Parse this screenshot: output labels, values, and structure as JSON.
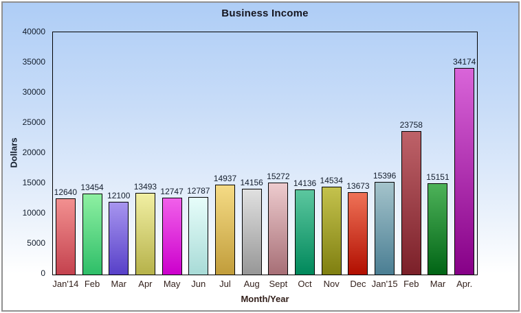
{
  "window": {
    "frame_border_color": "#8f8f8f",
    "background_top_color": "#aecdf6",
    "background_bottom_color": "#ffffff"
  },
  "chart_data": {
    "type": "bar",
    "title": "Business Income",
    "xlabel": "Month/Year",
    "ylabel": "Dollars",
    "ylim": [
      0,
      40000
    ],
    "yticks": [
      0,
      5000,
      10000,
      15000,
      20000,
      25000,
      30000,
      35000,
      40000
    ],
    "grid": false,
    "legend": "none",
    "value_labels_shown": true,
    "categories": [
      "Jan'14",
      "Feb",
      "Mar",
      "Apr",
      "May",
      "Jun",
      "Jul",
      "Aug",
      "Sept",
      "Oct",
      "Nov",
      "Dec",
      "Jan'15",
      "Feb",
      "Mar",
      "Apr."
    ],
    "values": [
      12640,
      13454,
      12100,
      13493,
      12747,
      12787,
      14937,
      14156,
      15272,
      14136,
      14534,
      13673,
      15396,
      23758,
      15151,
      34174
    ],
    "bar_colors": [
      {
        "top": "#f29090",
        "bottom": "#c4424e"
      },
      {
        "top": "#8ef0a2",
        "bottom": "#2ebe68"
      },
      {
        "top": "#a795ef",
        "bottom": "#5740c8"
      },
      {
        "top": "#f1efa3",
        "bottom": "#b6b24a"
      },
      {
        "top": "#f160ea",
        "bottom": "#cc00cc"
      },
      {
        "top": "#e7fdfa",
        "bottom": "#a8dbd7"
      },
      {
        "top": "#f5db85",
        "bottom": "#c19d3b"
      },
      {
        "top": "#e0e0e0",
        "bottom": "#979797"
      },
      {
        "top": "#edcbce",
        "bottom": "#a76f76"
      },
      {
        "top": "#5cc79f",
        "bottom": "#00885b"
      },
      {
        "top": "#c4c24d",
        "bottom": "#7f7f10"
      },
      {
        "top": "#ef7257",
        "bottom": "#b10e00"
      },
      {
        "top": "#a4c3cb",
        "bottom": "#4a7e93"
      },
      {
        "top": "#be6269",
        "bottom": "#7b2029"
      },
      {
        "top": "#4db259",
        "bottom": "#016415"
      },
      {
        "top": "#d965d9",
        "bottom": "#860087"
      }
    ],
    "axis_color": "#000000",
    "value_label_color": "#121c2b",
    "x_label_color": "#33201b"
  }
}
